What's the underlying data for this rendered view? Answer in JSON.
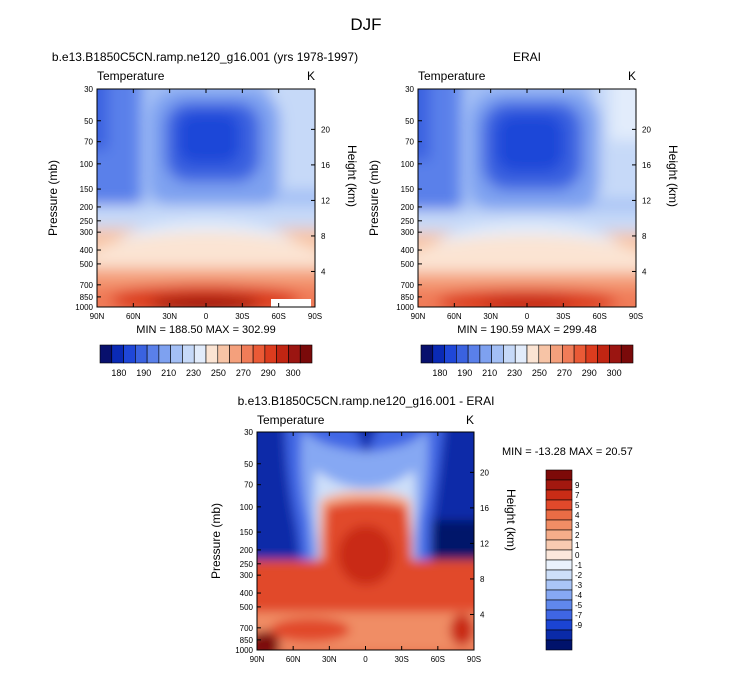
{
  "figure": {
    "title": "DJF"
  },
  "colors": {
    "temp_palette": [
      "#08106d",
      "#0a2ab5",
      "#1f47d8",
      "#3a62e0",
      "#5a80ea",
      "#7ea1f0",
      "#a3bff5",
      "#c6d9f8",
      "#e2ecfb",
      "#fbe4d3",
      "#f7c4a6",
      "#f4a07c",
      "#f07c58",
      "#ea5a36",
      "#dc3c1e",
      "#c12512",
      "#9b1511",
      "#7a0a0a"
    ],
    "diff_palette": [
      "#00126b",
      "#0a2aa8",
      "#1b44d3",
      "#3f66e4",
      "#6088ec",
      "#86a8f3",
      "#aac5f7",
      "#cddff9",
      "#eaf2fd",
      "#fbe7db",
      "#f8cbb1",
      "#f5ad8a",
      "#f08d65",
      "#ea6c45",
      "#e1492b",
      "#c92c16",
      "#a2180f",
      "#7d0a08"
    ]
  },
  "chart_data": [
    {
      "id": "panel-model",
      "type": "heatmap",
      "title": "b.e13.B1850C5CN.ramp.ne120_g16.001 (yrs 1978-1997)",
      "variable": "Temperature",
      "units": "K",
      "xlabel": "",
      "ylabel": "Pressure (mb)",
      "y2label": "Height (km)",
      "x_ticks": [
        "90N",
        "60N",
        "30N",
        "0",
        "30S",
        "60S",
        "90S"
      ],
      "x_range": [
        90,
        -90
      ],
      "y_ticks": [
        30,
        50,
        70,
        100,
        150,
        200,
        250,
        300,
        400,
        500,
        700,
        850,
        1000
      ],
      "y_range_mb": [
        30,
        1000
      ],
      "height_ticks_km": [
        4,
        8,
        12,
        16,
        20
      ],
      "stats": "MIN = 188.50   MAX = 302.99",
      "min": 188.5,
      "max": 302.99,
      "fill_levels": [
        175,
        180,
        185,
        190,
        195,
        200,
        205,
        210,
        215,
        220,
        225,
        230,
        235,
        240,
        245,
        250,
        255,
        260,
        265,
        270,
        275,
        280,
        285,
        290,
        295,
        300
      ],
      "colorbar_labels": [
        "180",
        "190",
        "210",
        "230",
        "250",
        "270",
        "290",
        "300"
      ]
    },
    {
      "id": "panel-obs",
      "type": "heatmap",
      "title": "ERAI",
      "variable": "Temperature",
      "units": "K",
      "xlabel": "",
      "ylabel": "Pressure (mb)",
      "y2label": "Height (km)",
      "x_ticks": [
        "90N",
        "60N",
        "30N",
        "0",
        "30S",
        "60S",
        "90S"
      ],
      "x_range": [
        90,
        -90
      ],
      "y_ticks": [
        30,
        50,
        70,
        100,
        150,
        200,
        250,
        300,
        400,
        500,
        700,
        850,
        1000
      ],
      "y_range_mb": [
        30,
        1000
      ],
      "height_ticks_km": [
        4,
        8,
        12,
        16,
        20
      ],
      "stats": "MIN = 190.59   MAX = 299.48",
      "min": 190.59,
      "max": 299.48,
      "colorbar_labels": [
        "180",
        "190",
        "210",
        "230",
        "250",
        "270",
        "290",
        "300"
      ]
    },
    {
      "id": "panel-diff",
      "type": "heatmap",
      "title": "b.e13.B1850C5CN.ramp.ne120_g16.001 - ERAI",
      "variable": "Temperature",
      "units": "K",
      "xlabel": "",
      "ylabel": "Pressure (mb)",
      "y2label": "Height (km)",
      "x_ticks": [
        "90N",
        "60N",
        "30N",
        "0",
        "30S",
        "60S",
        "90S"
      ],
      "x_range": [
        90,
        -90
      ],
      "y_ticks": [
        30,
        50,
        70,
        100,
        150,
        200,
        250,
        300,
        400,
        500,
        700,
        850,
        1000
      ],
      "y_range_mb": [
        30,
        1000
      ],
      "height_ticks_km": [
        4,
        8,
        12,
        16,
        20
      ],
      "stats": "MIN = -13.28   MAX =  20.57",
      "min": -13.28,
      "max": 20.57,
      "colorbar_labels": [
        "9",
        "7",
        "5",
        "4",
        "3",
        "2",
        "1",
        "0",
        "-1",
        "-2",
        "-3",
        "-4",
        "-5",
        "-7",
        "-9"
      ]
    }
  ]
}
